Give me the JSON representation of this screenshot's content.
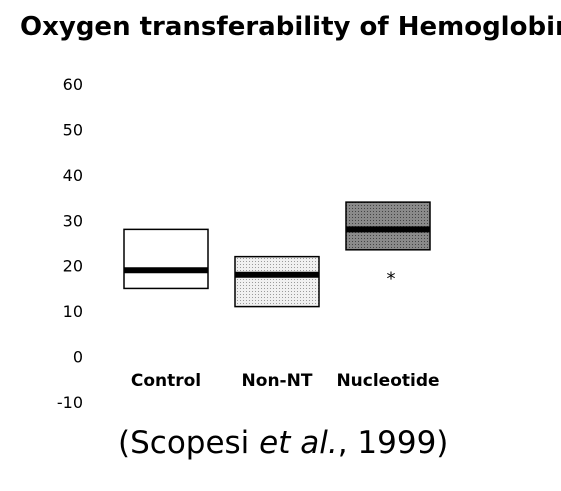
{
  "chart_data": {
    "type": "box",
    "title": "Oxygen transferability of Hemoglobin",
    "xlabel": "",
    "ylabel": "",
    "yticks": [
      "60",
      "50",
      "40",
      "30",
      "20",
      "10",
      "0",
      "-10"
    ],
    "ylim": [
      -10,
      60
    ],
    "grid": false,
    "categories": [
      "Control",
      "Non-NT",
      "Nucleotide"
    ],
    "boxes": [
      {
        "category": "Control",
        "low": 15,
        "median": 19,
        "high": 28,
        "fill": "#ffffff"
      },
      {
        "category": "Non-NT",
        "low": 11,
        "median": 18,
        "high": 22,
        "fill": "#e6e6e6"
      },
      {
        "category": "Nucleotide",
        "low": 23.5,
        "median": 28,
        "high": 34,
        "fill": "#8a8a8a"
      }
    ],
    "annotations": [
      {
        "category": "Nucleotide",
        "text": "*",
        "y": 18.5
      }
    ]
  },
  "citation": {
    "prefix": "(Scopesi ",
    "italic": "et al.",
    "suffix": ", 1999)"
  }
}
